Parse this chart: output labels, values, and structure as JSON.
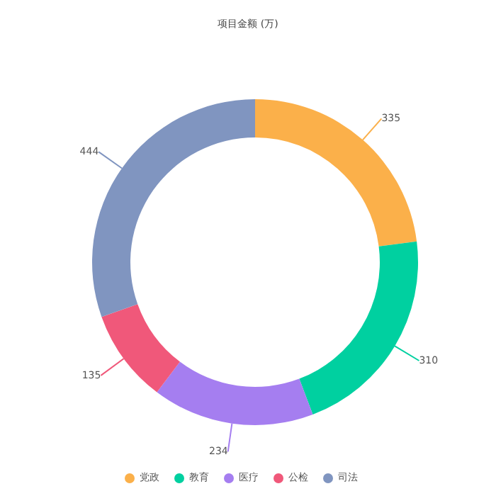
{
  "chart_data": {
    "type": "donut",
    "title": "项目金额 (万)",
    "categories": [
      "党政",
      "教育",
      "医疗",
      "公检",
      "司法"
    ],
    "values": [
      335,
      310,
      234,
      135,
      444
    ],
    "colors": [
      "#fbb04a",
      "#00d0a0",
      "#a57ef0",
      "#f0587a",
      "#8095c0"
    ],
    "data_labels": true,
    "legend": "bottom"
  }
}
